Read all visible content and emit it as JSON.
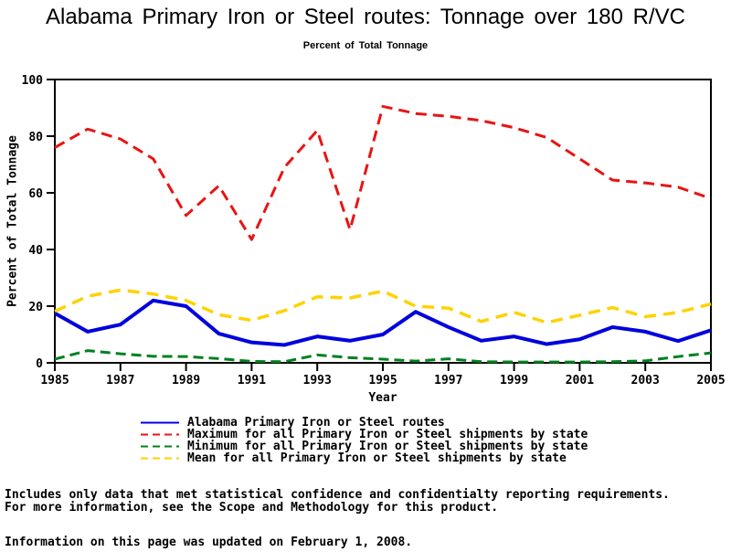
{
  "title": "Alabama Primary Iron or Steel routes: Tonnage over 180 R/VC",
  "subtitle": "Percent of Total Tonnage",
  "chart_data": {
    "type": "line",
    "title": "Alabama Primary Iron or Steel routes: Tonnage over 180 R/VC",
    "subtitle": "Percent of Total Tonnage",
    "xlabel": "Year",
    "ylabel": "Percent of Total Tonnage",
    "xlim": [
      1985,
      2005
    ],
    "ylim": [
      0,
      100
    ],
    "x_ticks": [
      1985,
      1987,
      1989,
      1991,
      1993,
      1995,
      1997,
      1999,
      2001,
      2003,
      2005
    ],
    "y_ticks": [
      0,
      20,
      40,
      60,
      80,
      100
    ],
    "grid": "off",
    "legend_position": "bottom",
    "x": [
      1985,
      1986,
      1987,
      1988,
      1989,
      1990,
      1991,
      1992,
      1993,
      1994,
      1995,
      1996,
      1997,
      1998,
      1999,
      2000,
      2001,
      2002,
      2003,
      2004,
      2005
    ],
    "series": [
      {
        "name": "Alabama Primary Iron or Steel routes",
        "color": "#0000DD",
        "dash": "solid",
        "width": 4,
        "values": [
          17.5,
          11,
          13.5,
          22,
          20,
          10.3,
          7.2,
          6.3,
          9.3,
          7.8,
          10,
          18,
          12.6,
          7.8,
          9.3,
          6.6,
          8.3,
          12.6,
          11,
          7.7,
          11.5
        ]
      },
      {
        "name": "Maximum for all Primary Iron or Steel shipments by state",
        "color": "#E81414",
        "dash": "12,7",
        "width": 3,
        "values": [
          76,
          82.5,
          79,
          72,
          52,
          62.5,
          43.5,
          69,
          82,
          47,
          90.5,
          88,
          87,
          85.5,
          83,
          79.5,
          72,
          64.5,
          63.5,
          62,
          58
        ]
      },
      {
        "name": "Minimum for all Primary Iron or Steel shipments by state",
        "color": "#008020",
        "dash": "11,6",
        "width": 3,
        "values": [
          1.3,
          4.3,
          3.2,
          2.3,
          2.2,
          1.5,
          0.5,
          0.4,
          2.8,
          1.8,
          1.3,
          0.6,
          1.4,
          0.4,
          0.3,
          0.3,
          0.3,
          0.4,
          0.7,
          2.2,
          3.5
        ]
      },
      {
        "name": "Mean for all Primary Iron or Steel shipments by state",
        "color": "#FFD200",
        "dash": "13,8",
        "width": 3.5,
        "values": [
          18.2,
          23.5,
          25.7,
          24.3,
          22,
          17,
          15,
          18.4,
          23.3,
          22.9,
          25.3,
          20,
          19.3,
          14.6,
          17.8,
          14.2,
          16.8,
          19.5,
          16.3,
          17.8,
          20.8
        ]
      }
    ]
  },
  "footnotes": {
    "line1": "Includes only data that met statistical confidence and confidentialty reporting requirements.",
    "line2": "For more information, see the Scope and Methodology for this product.",
    "updated": "Information on this page was updated on February 1, 2008."
  }
}
